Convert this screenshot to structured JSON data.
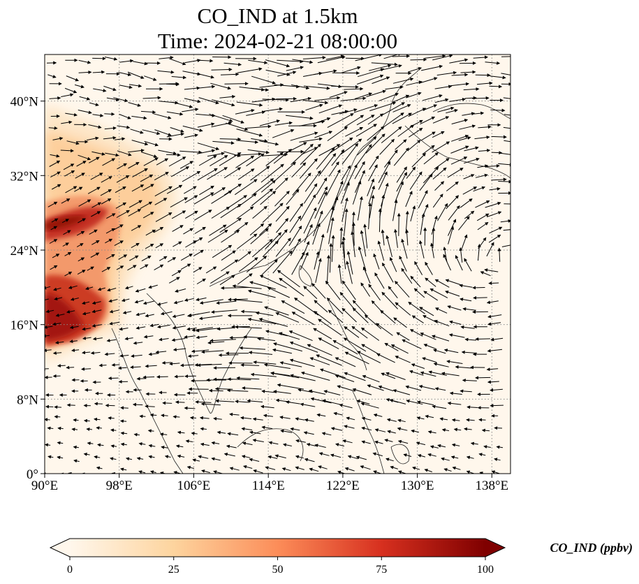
{
  "title": {
    "line1": "CO_IND at 1.5km",
    "line2": "Time: 2024-02-21 08:00:00"
  },
  "map": {
    "lon_range": [
      90,
      140
    ],
    "lat_range": [
      0,
      45
    ],
    "lon_ticks": [
      {
        "value": 90,
        "label": "90°E"
      },
      {
        "value": 98,
        "label": "98°E"
      },
      {
        "value": 106,
        "label": "106°E"
      },
      {
        "value": 114,
        "label": "114°E"
      },
      {
        "value": 122,
        "label": "122°E"
      },
      {
        "value": 130,
        "label": "130°E"
      },
      {
        "value": 138,
        "label": "138°E"
      }
    ],
    "lat_ticks": [
      {
        "value": 0,
        "label": "0°"
      },
      {
        "value": 8,
        "label": "8°N"
      },
      {
        "value": 16,
        "label": "16°N"
      },
      {
        "value": 24,
        "label": "24°N"
      },
      {
        "value": 32,
        "label": "32°N"
      },
      {
        "value": 40,
        "label": "40°N"
      }
    ],
    "gridlines": "dotted",
    "overlay": "wind-vectors",
    "colormap": "OrRd"
  },
  "colorbar": {
    "label": "CO_IND (ppbv)",
    "min": 0,
    "max": 100,
    "extend": "both",
    "ticks": [
      {
        "value": 0,
        "label": "0"
      },
      {
        "value": 25,
        "label": "25"
      },
      {
        "value": 50,
        "label": "50"
      },
      {
        "value": 75,
        "label": "75"
      },
      {
        "value": 100,
        "label": "100"
      }
    ],
    "colors": [
      "#fff7ec",
      "#fdd49e",
      "#fc8d59",
      "#d7301f",
      "#7f0000"
    ]
  }
}
